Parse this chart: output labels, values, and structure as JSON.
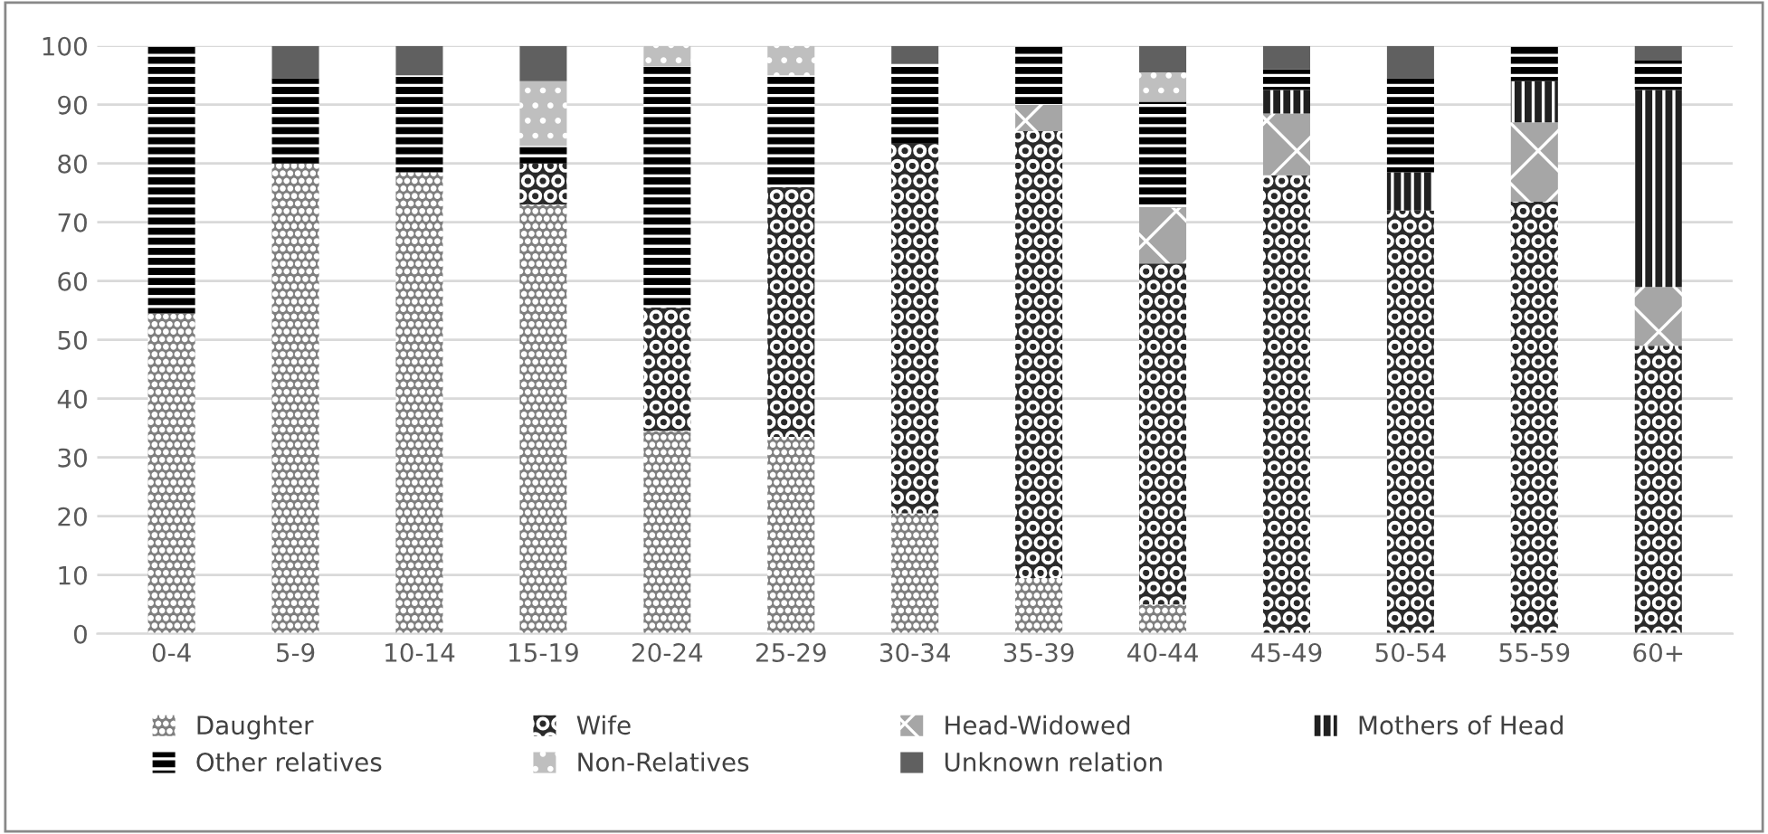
{
  "chart_data": {
    "type": "bar",
    "stacked": true,
    "categories": [
      "0-4",
      "5-9",
      "10-14",
      "15-19",
      "20-24",
      "25-29",
      "30-34",
      "35-39",
      "40-44",
      "45-49",
      "50-54",
      "55-59",
      "60+"
    ],
    "series": [
      {
        "name": "Daughter",
        "color": "#7f7f7f",
        "values": [
          54.5,
          80,
          78.5,
          73,
          34.5,
          33.5,
          20.5,
          9.5,
          5,
          0,
          0,
          0,
          0
        ]
      },
      {
        "name": "Wife",
        "color": "#2a2a2a",
        "values": [
          0,
          0,
          0,
          7,
          21,
          42.5,
          63,
          76,
          58,
          78,
          72,
          73.5,
          49
        ]
      },
      {
        "name": "Head-Widowed",
        "color": "#a6a6a6",
        "values": [
          0,
          0,
          0,
          0,
          0,
          0,
          0,
          4.5,
          9.5,
          10.5,
          0,
          13.5,
          10
        ]
      },
      {
        "name": "Mothers of Head",
        "color": "#202020",
        "values": [
          0,
          0,
          0,
          0,
          0,
          0,
          0,
          0,
          0,
          4,
          6.5,
          7,
          33.5
        ]
      },
      {
        "name": "Other relatives",
        "color": "#000000",
        "values": [
          45.5,
          14.5,
          16.5,
          3,
          41,
          19,
          13.5,
          10,
          18,
          3.5,
          16,
          6,
          5
        ]
      },
      {
        "name": "Non-Relatives",
        "color": "#bfbfbf",
        "values": [
          0,
          0,
          0,
          11,
          3.5,
          5,
          0,
          0,
          5,
          0,
          0,
          0,
          0
        ]
      },
      {
        "name": "Unknown relation",
        "color": "#606060",
        "values": [
          0,
          5.5,
          5,
          6,
          0,
          0,
          3,
          0,
          4.5,
          4,
          5.5,
          0,
          2.5
        ]
      }
    ],
    "ylim": [
      0,
      100
    ],
    "yticks": [
      0,
      10,
      20,
      30,
      40,
      50,
      60,
      70,
      80,
      90,
      100
    ],
    "grid": "y",
    "legend": "bottom"
  }
}
